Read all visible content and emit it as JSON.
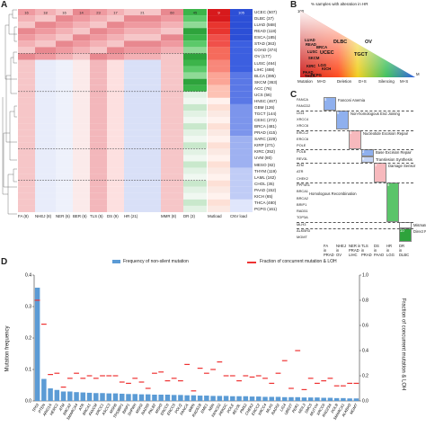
{
  "panel_a": {
    "label": "A",
    "right_labels": [
      "UCEC (507)",
      "DLBC (37)",
      "LUAD (568)",
      "READ (118)",
      "ESCA (185)",
      "STAD (363)",
      "COAD (374)",
      "OV (177)",
      "LUSC (464)",
      "LIHC (488)",
      "BLCA (395)",
      "SKCM (363)",
      "ACC (76)",
      "UCS (56)",
      "HNSC (467)",
      "GBM (126)",
      "TGCT (144)",
      "CESC (272)",
      "BRCA (481)",
      "PRAD (415)",
      "SARC (229)",
      "KIRP (271)",
      "KIRC (352)",
      "UVM (80)",
      "MESO (82)",
      "THYM (119)",
      "LAML (162)",
      "CHOL (35)",
      "PAAD (152)",
      "KICH (65)",
      "THCA (480)",
      "PCPG (161)"
    ],
    "bottom_labels": [
      "FA (8)",
      "NHEJ (8)",
      "NER (6)",
      "BER (6)",
      "TLS (5)",
      "DS (9)",
      "HR (21)",
      "MMR (8)",
      "DR (3)",
      "Mutload",
      "CNV load"
    ],
    "first_row_values": [
      "16",
      "18",
      "16",
      "14",
      "23",
      "17",
      "21",
      "60",
      "45",
      "9",
      "105"
    ]
  },
  "panel_b": {
    "label": "B",
    "title": "% samples with alteration in HR",
    "y_top": "100",
    "m_axis_label": "M",
    "bottom_labels": [
      "Mutation",
      "M+D",
      "Deletion",
      "D+S",
      "Silencing",
      "M+S"
    ],
    "points": [
      "UCEC",
      "DLBC",
      "OV",
      "TGCT",
      "LUAD",
      "BRCA",
      "READ",
      "LUSC",
      "SKCM",
      "KIRC",
      "LGG",
      "KICH",
      "PAAD",
      "PCPG",
      "THCA"
    ]
  },
  "panel_c": {
    "label": "C",
    "genes": [
      "FANCA",
      "FANCD2",
      "LIG4",
      "XRCC4",
      "XRCC6",
      "ERCC2",
      "ERCC6",
      "POLE",
      "POLB",
      "REV3L",
      "ATM",
      "ATR",
      "CHEK2",
      "PPP4R1",
      "BRCA1",
      "BRCA2",
      "BRIP1",
      "RAD51",
      "TOP3A",
      "MLH3",
      "ALKBH3",
      "MGMT"
    ],
    "pathways": [
      "Fanconi Anemia",
      "Non-homologous End Joining",
      "Nucleotide Excision Repair",
      "Base Excision Repair",
      "Translesion Synthesis",
      "Damage Sensor",
      "Homologous Recombination",
      "Mismatch Repair",
      "Direct Repair"
    ],
    "cell_numbers": [
      "5",
      "6",
      "4",
      "3",
      "9",
      "3",
      "4",
      "10"
    ],
    "bottom_groups": [
      {
        "top": "FA",
        "mid": "in",
        "bot": "PRAD"
      },
      {
        "top": "NHEJ",
        "mid": "in",
        "bot": "OV"
      },
      {
        "top": "NER in",
        "mid": "PRAD",
        "bot": "LIHC"
      },
      {
        "top": "TLS",
        "mid": "in",
        "bot": "PRAD"
      },
      {
        "top": "DS",
        "mid": "in",
        "bot": "PAAD"
      },
      {
        "top": "HR",
        "mid": "in",
        "bot": "LGG"
      },
      {
        "top": "DR",
        "mid": "in",
        "bot": "DLBC"
      }
    ]
  },
  "panel_d": {
    "label": "D",
    "legend_bar": "Frequency of non-silent mutation",
    "legend_line": "Fraction of concurrent mutation & LOH",
    "ylabel_left": "Mutation frequency",
    "ylabel_right": "Fraction of concurrent mutation & LOH",
    "left_ticks": [
      "0.0",
      "0.1",
      "0.2",
      "0.3",
      "0.4"
    ],
    "right_ticks": [
      "0.0",
      "0.2",
      "0.4",
      "0.6",
      "0.8",
      "1.0"
    ]
  },
  "chart_data": [
    {
      "type": "bar",
      "panel": "D",
      "categories": [
        "TP53",
        "PTEN",
        "ARID1A",
        "HERC2",
        "ATM",
        "BRCA2",
        "SMARCA4",
        "ATR",
        "BRCA1",
        "FANCM",
        "XRCC1",
        "ASCC3",
        "MSH6",
        "TP53BP1",
        "BRIP1",
        "SHPRH",
        "MSH2",
        "RAD50",
        "PALB2",
        "MSH3",
        "ERCC6",
        "ERCC5",
        "POLQ",
        "FANCA",
        "WRN",
        "RAD51B",
        "EME1",
        "NBN",
        "FANCD2",
        "PRKDC",
        "POLE",
        "REV3L",
        "PMS2",
        "CHEK2",
        "ERCC2",
        "XRCC4",
        "MLH1",
        "RAD52",
        "LIG4",
        "UBE2T",
        "PER1",
        "NEIL3",
        "SMC5",
        "MUTYH",
        "XRCC6",
        "RAD23A",
        "POLB",
        "SMARCA1",
        "ALKBH3",
        "MGMT"
      ],
      "series": [
        {
          "name": "Frequency of non-silent mutation",
          "axis": "left",
          "values": [
            0.36,
            0.07,
            0.04,
            0.035,
            0.03,
            0.03,
            0.028,
            0.027,
            0.026,
            0.025,
            0.025,
            0.024,
            0.024,
            0.023,
            0.022,
            0.022,
            0.021,
            0.021,
            0.02,
            0.02,
            0.02,
            0.019,
            0.019,
            0.018,
            0.018,
            0.017,
            0.017,
            0.016,
            0.016,
            0.016,
            0.015,
            0.015,
            0.015,
            0.014,
            0.014,
            0.013,
            0.013,
            0.013,
            0.012,
            0.012,
            0.012,
            0.011,
            0.011,
            0.011,
            0.01,
            0.01,
            0.009,
            0.009,
            0.008,
            0.008
          ]
        },
        {
          "name": "Fraction of concurrent mutation & LOH",
          "axis": "right",
          "values": [
            0.8,
            0.61,
            0.21,
            0.22,
            0.11,
            0.18,
            0.22,
            0.18,
            0.2,
            0.18,
            0.2,
            0.2,
            0.2,
            0.15,
            0.14,
            0.18,
            0.15,
            0.1,
            0.22,
            0.23,
            0.16,
            0.18,
            0.16,
            0.29,
            0.08,
            0.26,
            0.22,
            0.25,
            0.31,
            0.2,
            0.2,
            0.16,
            0.2,
            0.19,
            0.2,
            0.18,
            0.14,
            0.22,
            0.32,
            0.1,
            0.4,
            0.09,
            0.18,
            0.14,
            0.16,
            0.18,
            0.12,
            0.12,
            0.14,
            0.14
          ]
        }
      ],
      "ylim_left": [
        0,
        0.4
      ],
      "ylim_right": [
        0,
        1.0
      ],
      "ylabel": "Mutation frequency",
      "ylabel_right": "Fraction of concurrent mutation & LOH",
      "legend": "top"
    }
  ]
}
